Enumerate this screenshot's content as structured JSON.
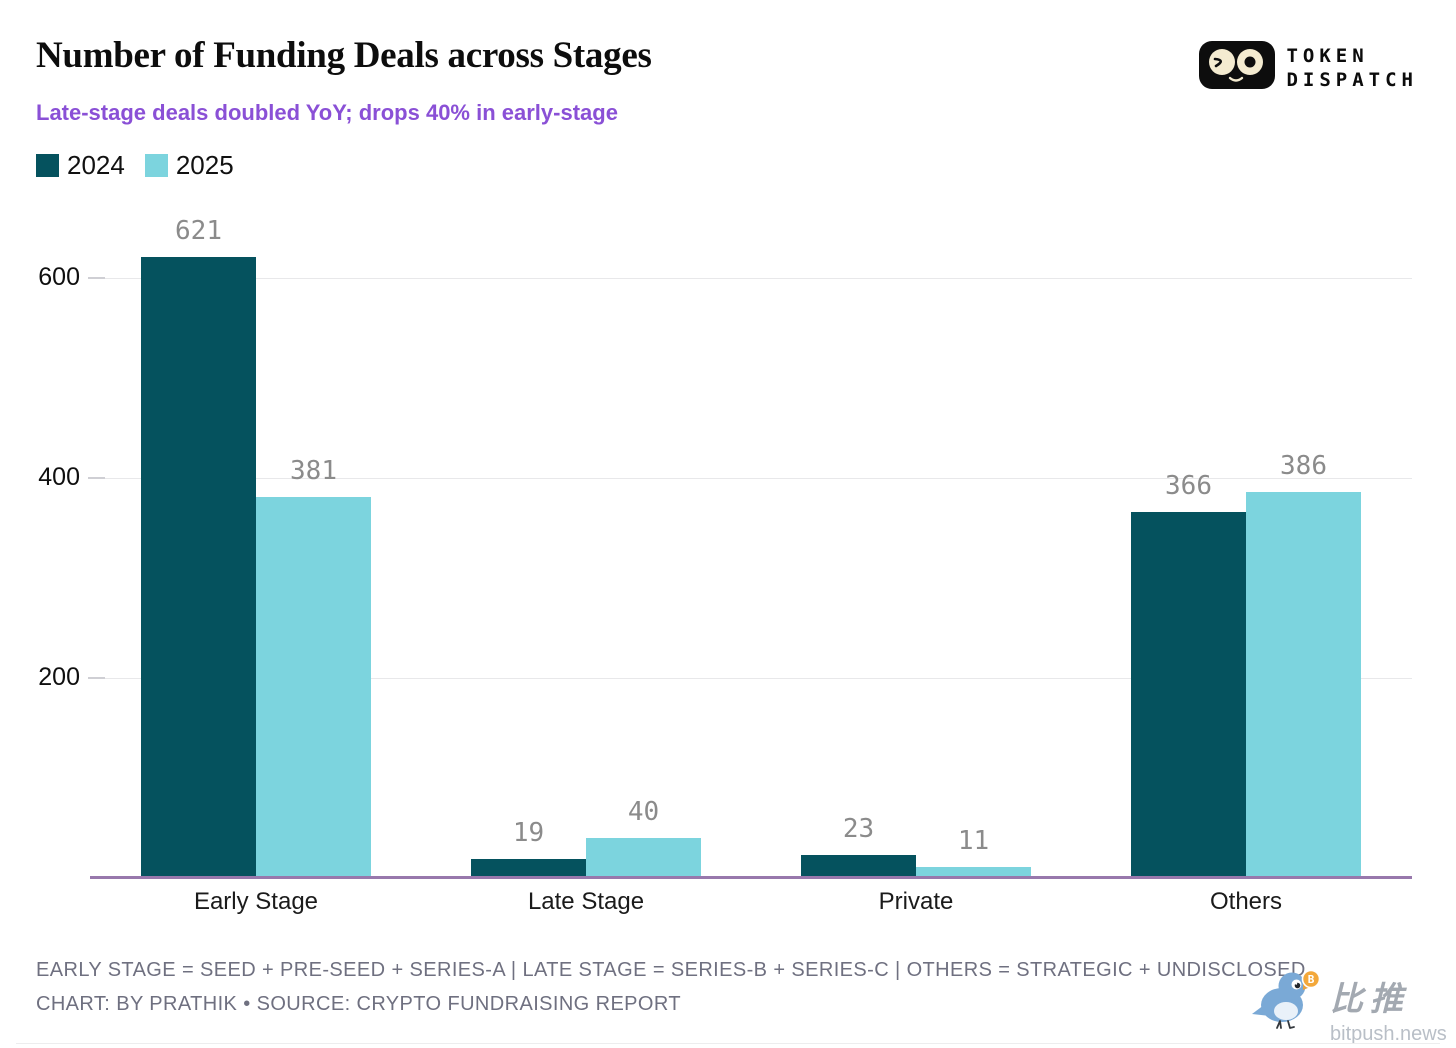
{
  "header": {
    "title": "Number of Funding Deals across Stages",
    "subtitle": "Late-stage deals doubled YoY; drops 40% in early-stage"
  },
  "brand": {
    "line1": "TOKEN",
    "line2": "DISPATCH"
  },
  "legend": [
    {
      "label": "2024",
      "color": "#05525e"
    },
    {
      "label": "2025",
      "color": "#7cd4de"
    }
  ],
  "chart_data": {
    "type": "bar",
    "categories": [
      "Early Stage",
      "Late Stage",
      "Private",
      "Others"
    ],
    "series": [
      {
        "name": "2024",
        "color": "#05525e",
        "values": [
          621,
          19,
          23,
          366
        ]
      },
      {
        "name": "2025",
        "color": "#7cd4de",
        "values": [
          381,
          40,
          11,
          386
        ]
      }
    ],
    "title": "Number of Funding Deals across Stages",
    "xlabel": "",
    "ylabel": "",
    "yticks": [
      200,
      400,
      600
    ],
    "ylim": [
      0,
      660
    ],
    "grid": "horizontal",
    "legend_position": "top-left",
    "value_labels": true,
    "colors": {
      "grid": "#e8e8ea",
      "baseline": "#9878ac",
      "value_label": "#8b8b8b",
      "axis_label": "#0f0f0f"
    }
  },
  "footer": {
    "line1": "EARLY STAGE = SEED + PRE-SEED + SERIES-A | LATE STAGE = SERIES-B + SERIES-C | OTHERS = STRATEGIC + UNDISCLOSED",
    "line2": "CHART: BY PRATHIK • SOURCE: CRYPTO FUNDRAISING REPORT"
  },
  "bitpush": {
    "name_cn": "比推",
    "domain": "bitpush.news"
  }
}
